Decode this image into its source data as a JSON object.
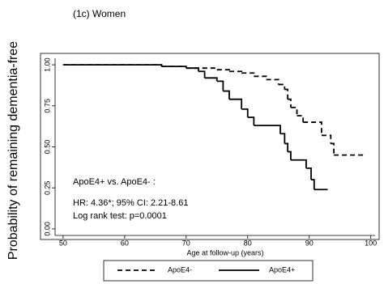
{
  "chart_data": {
    "type": "step",
    "title": "(1c) Women",
    "x_label": "Age at follow-up (years)",
    "y_label": "Probability of remaining dementia-free",
    "annotations": [
      "ApoE4+ vs. ApoE4- :",
      "HR: 4.36*; 95% CI: 2.21-8.61",
      "Log rank test: p=0.0001"
    ],
    "xlim": [
      48.7,
      100.7
    ],
    "xticks": [
      50,
      60,
      70,
      80,
      90,
      100
    ],
    "ylim": [
      -0.04,
      1.04
    ],
    "yticks": [
      {
        "value": 0,
        "label": "0.00"
      },
      {
        "value": 0.25,
        "label": "0.25"
      },
      {
        "value": 0.5,
        "label": "0.50"
      },
      {
        "value": 0.75,
        "label": "0.75"
      },
      {
        "value": 1,
        "label": "1.00"
      }
    ],
    "legend": "bottom",
    "series": [
      {
        "name": "ApoE4-",
        "color": "#000000",
        "line_style": "dashed",
        "x": [
          50,
          66,
          70,
          75,
          77,
          79,
          81,
          83,
          85,
          86,
          86.5,
          87,
          88,
          89,
          92,
          93.5,
          94,
          99
        ],
        "values": [
          1,
          0.99,
          0.98,
          0.97,
          0.96,
          0.95,
          0.93,
          0.91,
          0.88,
          0.85,
          0.79,
          0.74,
          0.69,
          0.65,
          0.57,
          0.52,
          0.45,
          0.45
        ]
      },
      {
        "name": "ApoE4+",
        "color": "#000000",
        "line_style": "solid",
        "x": [
          50,
          66,
          70,
          72,
          73,
          75,
          76,
          77,
          79,
          80,
          81,
          85.3,
          86,
          86.5,
          87,
          89.5,
          90.3,
          90.8,
          93
        ],
        "values": [
          1,
          0.99,
          0.98,
          0.96,
          0.92,
          0.9,
          0.84,
          0.79,
          0.73,
          0.68,
          0.63,
          0.58,
          0.52,
          0.47,
          0.42,
          0.37,
          0.3,
          0.24,
          0.24
        ]
      }
    ]
  }
}
